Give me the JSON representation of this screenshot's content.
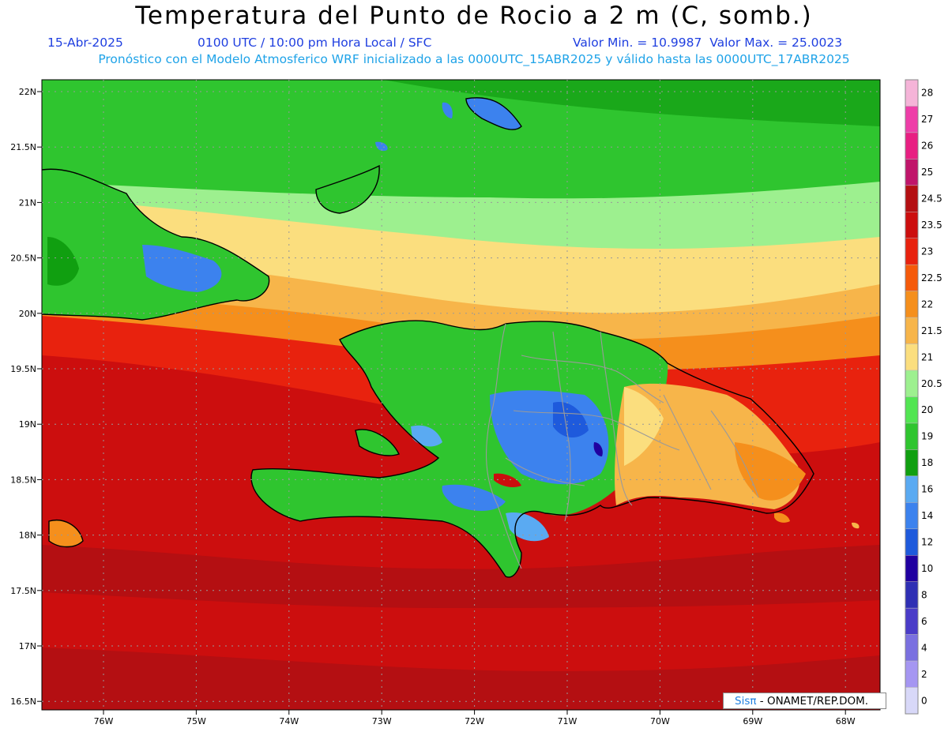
{
  "header": {
    "title": "Temperatura del Punto de Rocio a 2 m (C, somb.)",
    "date": "15-Abr-2025",
    "time": "0100 UTC / 10:00 pm Hora Local / SFC",
    "minmax": "Valor Min. = 10.9987  Valor Max. = 25.0023",
    "model_info": "Pronóstico con el Modelo Atmosferico WRF inicializado a las 0000UTC_15ABR2025 y válido hasta las  0000UTC_17ABR2025"
  },
  "lat_labels": [
    "22N",
    "21.5N",
    "21N",
    "20.5N",
    "20N",
    "19.5N",
    "19N",
    "18.5N",
    "18N",
    "17.5N",
    "17N",
    "16.5N"
  ],
  "lon_labels": [
    "76W",
    "75W",
    "74W",
    "73W",
    "72W",
    "71W",
    "70W",
    "69W",
    "68W"
  ],
  "legend": {
    "labels": [
      "28",
      "27",
      "26",
      "25",
      "24.5",
      "23.5",
      "23",
      "22.5",
      "22",
      "21.5",
      "21",
      "20.5",
      "20",
      "19",
      "18",
      "16",
      "14",
      "12",
      "10",
      "8",
      "6",
      "4",
      "2",
      "0"
    ],
    "colors": [
      "#f5b4d8",
      "#ee3ea8",
      "#e81f82",
      "#c0156a",
      "#b40f12",
      "#cc0e0e",
      "#e8220e",
      "#f55a0a",
      "#f58f1c",
      "#f7b54a",
      "#fbde7e",
      "#9df08f",
      "#52e552",
      "#2fc52f",
      "#109f10",
      "#5aaaf2",
      "#3c82ee",
      "#1e5adc",
      "#2000a0",
      "#2f2fb4",
      "#4a3cc8",
      "#7a70e0",
      "#a596f2",
      "#d8d8f8"
    ]
  },
  "credit": {
    "brand": "Sisπ",
    "text": " - ONAMET/REP.DOM."
  }
}
